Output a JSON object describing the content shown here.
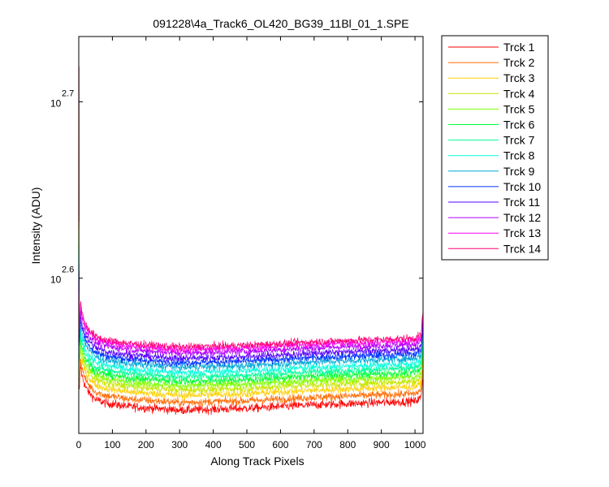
{
  "chart_data": {
    "type": "line",
    "title": "091228\\4a_Track6_OL420_BG39_11Bl_01_1.SPE",
    "xlabel": "Along Track Pixels",
    "ylabel": "Intensity (ADU)",
    "xlim": [
      0,
      1024
    ],
    "ylim_log10": [
      2.512,
      2.737
    ],
    "y_scale": "log",
    "x_ticks": [
      0,
      100,
      200,
      300,
      400,
      500,
      600,
      700,
      800,
      900,
      1000
    ],
    "x_tick_labels": [
      "0",
      "100",
      "200",
      "300",
      "400",
      "500",
      "600",
      "700",
      "800",
      "900",
      "1000"
    ],
    "y_ticks_log10": [
      2.6,
      2.7
    ],
    "y_tick_labels": [
      {
        "base": "10",
        "exp": "2.6"
      },
      {
        "base": "10",
        "exp": "2.7"
      }
    ],
    "grid": false,
    "legend_position": "outside-right",
    "x_profile": [
      0,
      5,
      10,
      20,
      30,
      50,
      80,
      150,
      300,
      500,
      700,
      850,
      1000,
      1018,
      1024
    ],
    "profile_delta_log10": [
      0.0,
      0.025,
      0.018,
      0.012,
      0.009,
      0.005,
      0.003,
      0.001,
      -0.001,
      0.0,
      0.002,
      0.003,
      0.004,
      0.006,
      0.02
    ],
    "series": [
      {
        "name": "Trck 1",
        "color": "#ff0000",
        "level_log10": 2.5262,
        "noise_log10": 0.0025
      },
      {
        "name": "Trck 2",
        "color": "#ff6a00",
        "level_log10": 2.5305,
        "noise_log10": 0.0023
      },
      {
        "name": "Trck 3",
        "color": "#ffd000",
        "level_log10": 2.5345,
        "noise_log10": 0.0022
      },
      {
        "name": "Trck 4",
        "color": "#c8e600",
        "level_log10": 2.5375,
        "noise_log10": 0.0022
      },
      {
        "name": "Trck 5",
        "color": "#80ff00",
        "level_log10": 2.54,
        "noise_log10": 0.0022
      },
      {
        "name": "Trck 6",
        "color": "#00ff33",
        "level_log10": 2.5425,
        "noise_log10": 0.0022
      },
      {
        "name": "Trck 7",
        "color": "#00ff99",
        "level_log10": 2.545,
        "noise_log10": 0.0021
      },
      {
        "name": "Trck 8",
        "color": "#00ffdd",
        "level_log10": 2.5475,
        "noise_log10": 0.0021
      },
      {
        "name": "Trck 9",
        "color": "#00a8d6",
        "level_log10": 2.5505,
        "noise_log10": 0.0021
      },
      {
        "name": "Trck 10",
        "color": "#0033ff",
        "level_log10": 2.553,
        "noise_log10": 0.0021
      },
      {
        "name": "Trck 11",
        "color": "#5500ff",
        "level_log10": 2.5555,
        "noise_log10": 0.0021
      },
      {
        "name": "Trck 12",
        "color": "#b000ff",
        "level_log10": 2.5585,
        "noise_log10": 0.0021
      },
      {
        "name": "Trck 13",
        "color": "#ff00ee",
        "level_log10": 2.5605,
        "noise_log10": 0.0021
      },
      {
        "name": "Trck 14",
        "color": "#ff0077",
        "level_log10": 2.562,
        "noise_log10": 0.0021
      }
    ]
  }
}
